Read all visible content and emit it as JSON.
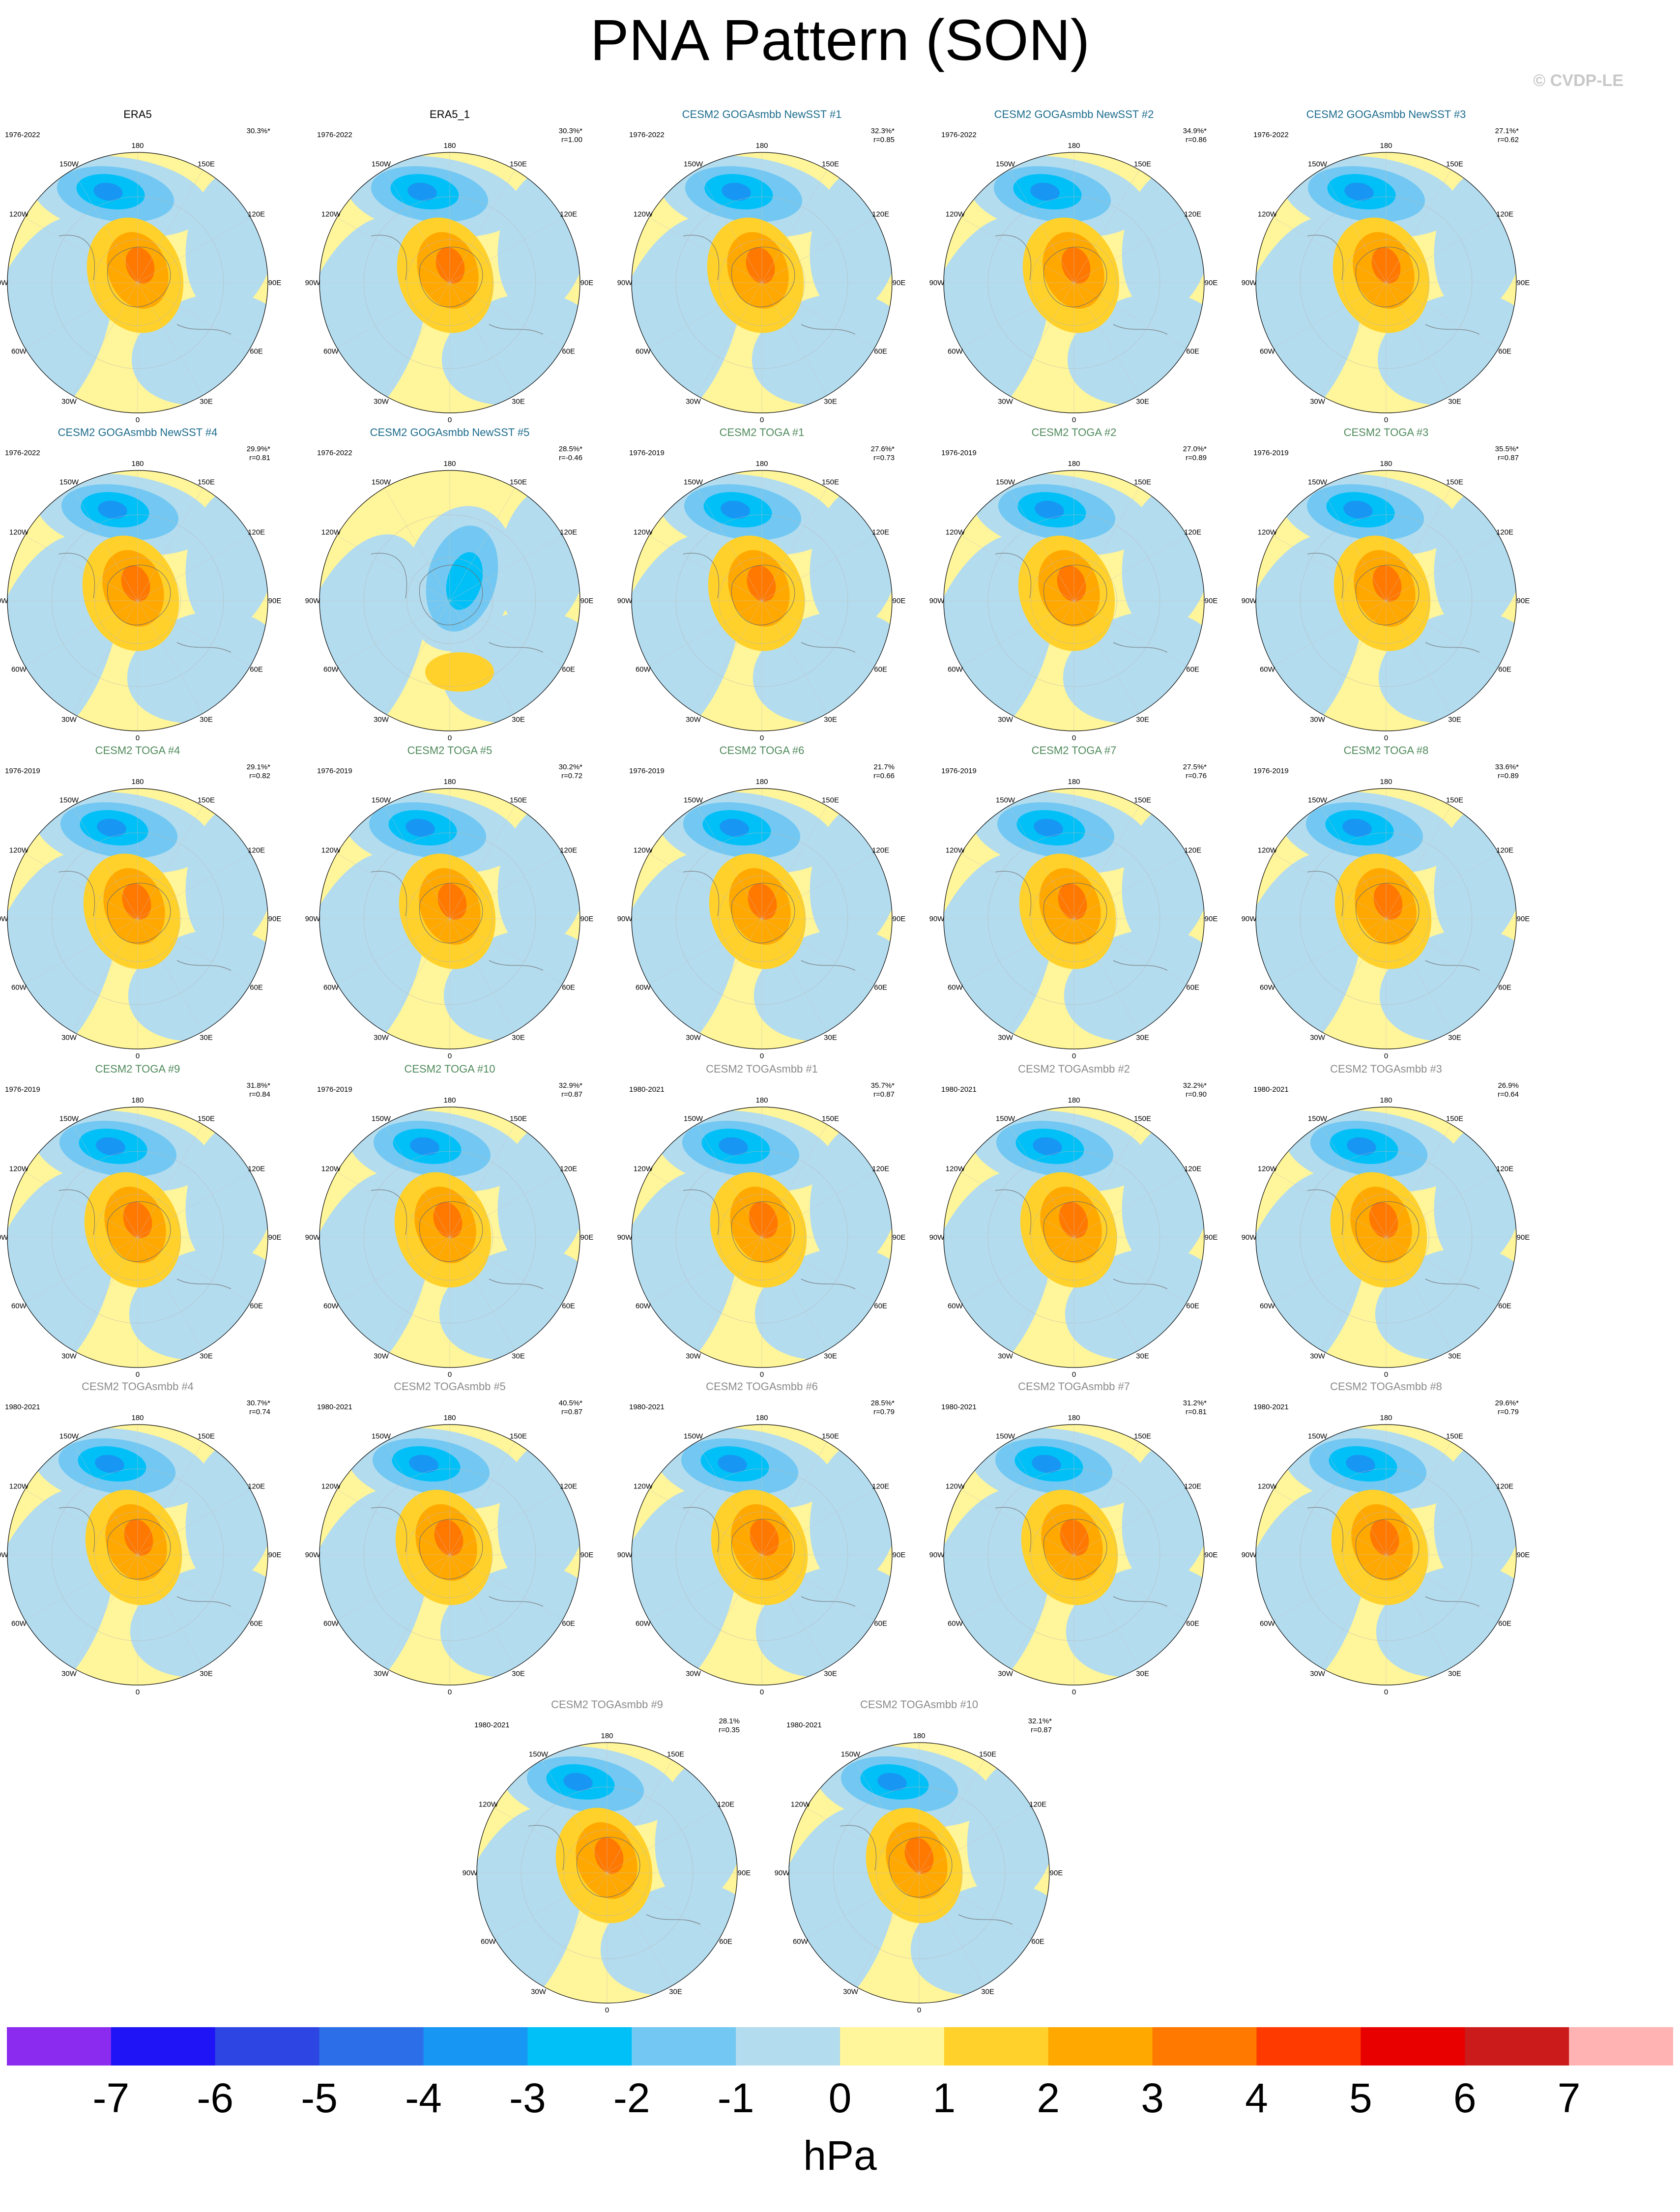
{
  "title": "PNA Pattern (SON)",
  "watermark": "© CVDP-LE",
  "title_colors": {
    "observation": "#000000",
    "goga": "#1b6b8c",
    "toga": "#4f8a5b",
    "togasmbb": "#8a8a8a"
  },
  "lon_labels": [
    "180",
    "150E",
    "120E",
    "90E",
    "60E",
    "30E",
    "0",
    "30W",
    "60W",
    "90W",
    "120W",
    "150W"
  ],
  "panels": [
    {
      "title": "ERA5",
      "group": "observation",
      "years": "1976-2022",
      "pct": "30.3%*",
      "r": ""
    },
    {
      "title": "ERA5_1",
      "group": "observation",
      "years": "1976-2022",
      "pct": "30.3%*",
      "r": "r=1.00"
    },
    {
      "title": "CESM2 GOGAsmbb NewSST #1",
      "group": "goga",
      "years": "1976-2022",
      "pct": "32.3%*",
      "r": "r=0.85"
    },
    {
      "title": "CESM2 GOGAsmbb NewSST #2",
      "group": "goga",
      "years": "1976-2022",
      "pct": "34.9%*",
      "r": "r=0.86"
    },
    {
      "title": "CESM2 GOGAsmbb NewSST #3",
      "group": "goga",
      "years": "1976-2022",
      "pct": "27.1%*",
      "r": "r=0.62"
    },
    {
      "title": "CESM2 GOGAsmbb NewSST #4",
      "group": "goga",
      "years": "1976-2022",
      "pct": "29.9%*",
      "r": "r=0.81"
    },
    {
      "title": "CESM2 GOGAsmbb NewSST #5",
      "group": "goga",
      "years": "1976-2022",
      "pct": "28.5%*",
      "r": "r=-0.46"
    },
    {
      "title": "CESM2 TOGA #1",
      "group": "toga",
      "years": "1976-2019",
      "pct": "27.6%*",
      "r": "r=0.73"
    },
    {
      "title": "CESM2 TOGA #2",
      "group": "toga",
      "years": "1976-2019",
      "pct": "27.0%*",
      "r": "r=0.89"
    },
    {
      "title": "CESM2 TOGA #3",
      "group": "toga",
      "years": "1976-2019",
      "pct": "35.5%*",
      "r": "r=0.87"
    },
    {
      "title": "CESM2 TOGA #4",
      "group": "toga",
      "years": "1976-2019",
      "pct": "29.1%*",
      "r": "r=0.82"
    },
    {
      "title": "CESM2 TOGA #5",
      "group": "toga",
      "years": "1976-2019",
      "pct": "30.2%*",
      "r": "r=0.72"
    },
    {
      "title": "CESM2 TOGA #6",
      "group": "toga",
      "years": "1976-2019",
      "pct": "21.7%",
      "r": "r=0.66"
    },
    {
      "title": "CESM2 TOGA #7",
      "group": "toga",
      "years": "1976-2019",
      "pct": "27.5%*",
      "r": "r=0.76"
    },
    {
      "title": "CESM2 TOGA #8",
      "group": "toga",
      "years": "1976-2019",
      "pct": "33.6%*",
      "r": "r=0.89"
    },
    {
      "title": "CESM2 TOGA #9",
      "group": "toga",
      "years": "1976-2019",
      "pct": "31.8%*",
      "r": "r=0.84"
    },
    {
      "title": "CESM2 TOGA #10",
      "group": "toga",
      "years": "1976-2019",
      "pct": "32.9%*",
      "r": "r=0.87"
    },
    {
      "title": "CESM2 TOGAsmbb #1",
      "group": "togasmbb",
      "years": "1980-2021",
      "pct": "35.7%*",
      "r": "r=0.87"
    },
    {
      "title": "CESM2 TOGAsmbb #2",
      "group": "togasmbb",
      "years": "1980-2021",
      "pct": "32.2%*",
      "r": "r=0.90"
    },
    {
      "title": "CESM2 TOGAsmbb #3",
      "group": "togasmbb",
      "years": "1980-2021",
      "pct": "26.9%",
      "r": "r=0.64"
    },
    {
      "title": "CESM2 TOGAsmbb #4",
      "group": "togasmbb",
      "years": "1980-2021",
      "pct": "30.7%*",
      "r": "r=0.74"
    },
    {
      "title": "CESM2 TOGAsmbb #5",
      "group": "togasmbb",
      "years": "1980-2021",
      "pct": "40.5%*",
      "r": "r=0.87"
    },
    {
      "title": "CESM2 TOGAsmbb #6",
      "group": "togasmbb",
      "years": "1980-2021",
      "pct": "28.5%*",
      "r": "r=0.79"
    },
    {
      "title": "CESM2 TOGAsmbb #7",
      "group": "togasmbb",
      "years": "1980-2021",
      "pct": "31.2%*",
      "r": "r=0.81"
    },
    {
      "title": "CESM2 TOGAsmbb #8",
      "group": "togasmbb",
      "years": "1980-2021",
      "pct": "29.6%*",
      "r": "r=0.79"
    },
    {
      "title": "CESM2 TOGAsmbb #9",
      "group": "togasmbb",
      "years": "1980-2021",
      "pct": "28.1%",
      "r": "r=0.35"
    },
    {
      "title": "CESM2 TOGAsmbb #10",
      "group": "togasmbb",
      "years": "1980-2021",
      "pct": "32.1%*",
      "r": "r=0.87"
    }
  ],
  "colorbar": {
    "colors": [
      "#8a2bef",
      "#1e14f5",
      "#2d46e3",
      "#2c6ee8",
      "#1797f3",
      "#00c0f7",
      "#72c8f2",
      "#b3dcef",
      "#fff59a",
      "#ffd12a",
      "#ffa800",
      "#ff7800",
      "#ff3a00",
      "#e80000",
      "#cc1b1b",
      "#ffb3b3"
    ],
    "labels": [
      "-7",
      "-6",
      "-5",
      "-4",
      "-3",
      "-2",
      "-1",
      "0",
      "1",
      "2",
      "3",
      "4",
      "5",
      "6",
      "7"
    ],
    "units": "hPa"
  }
}
